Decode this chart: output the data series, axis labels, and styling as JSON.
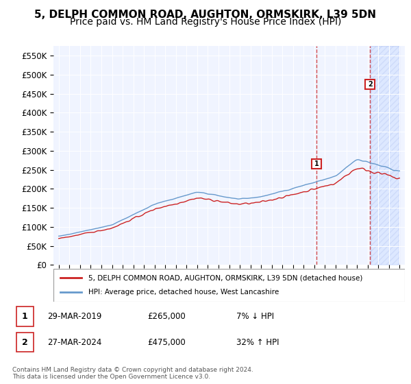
{
  "title": "5, DELPH COMMON ROAD, AUGHTON, ORMSKIRK, L39 5DN",
  "subtitle": "Price paid vs. HM Land Registry's House Price Index (HPI)",
  "ylabel": "",
  "ylim": [
    0,
    575000
  ],
  "yticks": [
    0,
    50000,
    100000,
    150000,
    200000,
    250000,
    300000,
    350000,
    400000,
    450000,
    500000,
    550000
  ],
  "ytick_labels": [
    "£0",
    "£50K",
    "£100K",
    "£150K",
    "£200K",
    "£250K",
    "£300K",
    "£350K",
    "£400K",
    "£450K",
    "£500K",
    "£550K"
  ],
  "hpi_color": "#6699cc",
  "price_color": "#cc2222",
  "sale1_year": 2019.23,
  "sale1_price": 265000,
  "sale1_label": "1",
  "sale2_year": 2024.23,
  "sale2_price": 475000,
  "sale2_label": "2",
  "legend_line1": "5, DELPH COMMON ROAD, AUGHTON, ORMSKIRK, L39 5DN (detached house)",
  "legend_line2": "HPI: Average price, detached house, West Lancashire",
  "table_row1_num": "1",
  "table_row1_date": "29-MAR-2019",
  "table_row1_price": "£265,000",
  "table_row1_hpi": "7% ↓ HPI",
  "table_row2_num": "2",
  "table_row2_date": "27-MAR-2024",
  "table_row2_price": "£475,000",
  "table_row2_hpi": "32% ↑ HPI",
  "footer": "Contains HM Land Registry data © Crown copyright and database right 2024.\nThis data is licensed under the Open Government Licence v3.0.",
  "background_color": "#ffffff",
  "plot_bg_color": "#f0f4ff",
  "hatch_color": "#ccddff",
  "title_fontsize": 11,
  "subtitle_fontsize": 10
}
